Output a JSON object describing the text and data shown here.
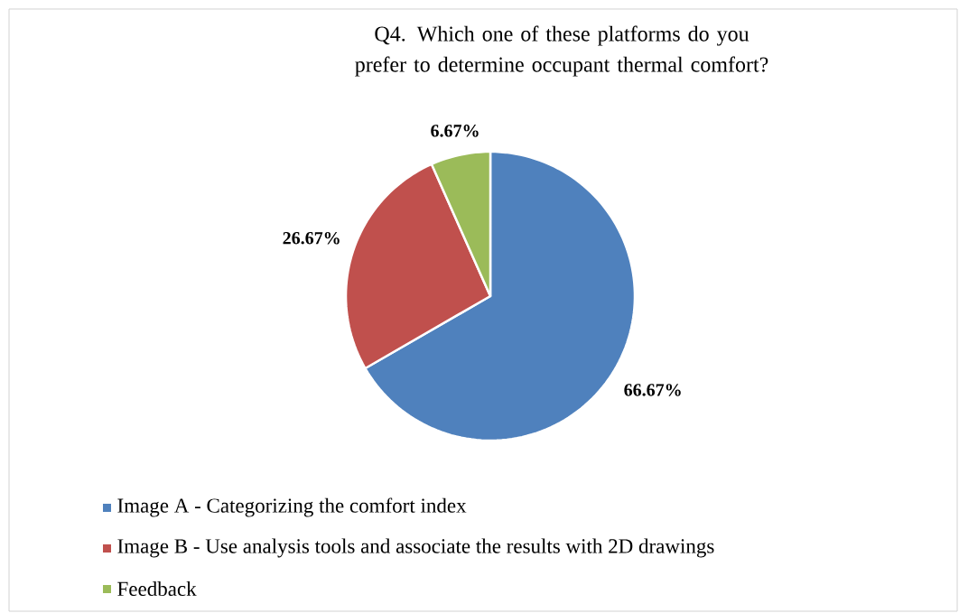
{
  "chart_data": {
    "type": "pie",
    "title": "Q4. Which one of these platforms do you prefer to determine occupant thermal comfort?",
    "categories": [
      "Image A - Categorizing the comfort index",
      "Image B - Use analysis tools and associate the results with 2D drawings",
      "Feedback"
    ],
    "values": [
      66.67,
      26.67,
      6.67
    ],
    "colors": [
      "#4f81bd",
      "#c0504d",
      "#9bbb59"
    ],
    "value_labels": [
      "66.67%",
      "26.67%",
      "6.67%"
    ],
    "legend": "bottom"
  }
}
